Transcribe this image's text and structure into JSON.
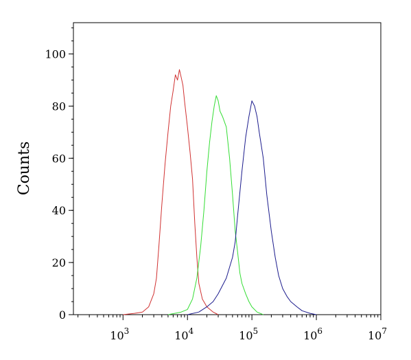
{
  "chart_data": {
    "type": "line",
    "title": "",
    "xlabel": "",
    "ylabel": "Counts",
    "x_scale": "log",
    "xlim": [
      170,
      10000000
    ],
    "ylim": [
      0,
      112
    ],
    "grid": false,
    "legend": "none",
    "x_ticks": [
      {
        "value": 1000,
        "base": "10",
        "exp": "3"
      },
      {
        "value": 10000,
        "base": "10",
        "exp": "4"
      },
      {
        "value": 100000,
        "base": "10",
        "exp": "5"
      },
      {
        "value": 1000000,
        "base": "10",
        "exp": "6"
      },
      {
        "value": 10000000,
        "base": "10",
        "exp": "7"
      }
    ],
    "y_ticks": [
      {
        "value": 0,
        "label": "0"
      },
      {
        "value": 20,
        "label": "20"
      },
      {
        "value": 40,
        "label": "40"
      },
      {
        "value": 60,
        "label": "60"
      },
      {
        "value": 80,
        "label": "80"
      },
      {
        "value": 100,
        "label": "100"
      }
    ],
    "series": [
      {
        "color": "#d03030",
        "points": [
          [
            1000,
            0
          ],
          [
            1500,
            0.5
          ],
          [
            2000,
            1
          ],
          [
            2500,
            3
          ],
          [
            3000,
            8
          ],
          [
            3300,
            14
          ],
          [
            3600,
            26
          ],
          [
            4000,
            42
          ],
          [
            4500,
            58
          ],
          [
            5000,
            70
          ],
          [
            5500,
            80
          ],
          [
            6000,
            86
          ],
          [
            6500,
            92
          ],
          [
            7000,
            90
          ],
          [
            7500,
            94
          ],
          [
            8000,
            91
          ],
          [
            8500,
            88
          ],
          [
            9000,
            82
          ],
          [
            10000,
            72
          ],
          [
            11000,
            62
          ],
          [
            12000,
            52
          ],
          [
            13000,
            35
          ],
          [
            14000,
            22
          ],
          [
            15000,
            12
          ],
          [
            17000,
            6
          ],
          [
            20000,
            3
          ],
          [
            25000,
            1
          ],
          [
            30000,
            0
          ]
        ]
      },
      {
        "color": "#33dd33",
        "points": [
          [
            5000,
            0
          ],
          [
            8000,
            1
          ],
          [
            10000,
            2
          ],
          [
            12000,
            6
          ],
          [
            14000,
            14
          ],
          [
            16000,
            26
          ],
          [
            18000,
            40
          ],
          [
            20000,
            55
          ],
          [
            22000,
            66
          ],
          [
            24000,
            74
          ],
          [
            26000,
            80
          ],
          [
            28000,
            84
          ],
          [
            30000,
            82
          ],
          [
            32000,
            78
          ],
          [
            35000,
            76
          ],
          [
            40000,
            72
          ],
          [
            45000,
            60
          ],
          [
            50000,
            46
          ],
          [
            55000,
            32
          ],
          [
            60000,
            24
          ],
          [
            65000,
            16
          ],
          [
            70000,
            12
          ],
          [
            80000,
            8
          ],
          [
            90000,
            5
          ],
          [
            100000,
            3
          ],
          [
            120000,
            1
          ],
          [
            150000,
            0
          ]
        ]
      },
      {
        "color": "#1a1a8c",
        "points": [
          [
            10000,
            0
          ],
          [
            15000,
            1
          ],
          [
            20000,
            3
          ],
          [
            25000,
            5
          ],
          [
            30000,
            8
          ],
          [
            40000,
            14
          ],
          [
            50000,
            22
          ],
          [
            55000,
            28
          ],
          [
            60000,
            38
          ],
          [
            70000,
            55
          ],
          [
            80000,
            68
          ],
          [
            90000,
            76
          ],
          [
            100000,
            82
          ],
          [
            110000,
            80
          ],
          [
            120000,
            76
          ],
          [
            130000,
            70
          ],
          [
            150000,
            60
          ],
          [
            170000,
            46
          ],
          [
            200000,
            32
          ],
          [
            230000,
            22
          ],
          [
            260000,
            15
          ],
          [
            300000,
            10
          ],
          [
            350000,
            7
          ],
          [
            400000,
            5
          ],
          [
            500000,
            3
          ],
          [
            600000,
            1.5
          ],
          [
            800000,
            0.5
          ],
          [
            1000000,
            0
          ]
        ]
      }
    ]
  }
}
